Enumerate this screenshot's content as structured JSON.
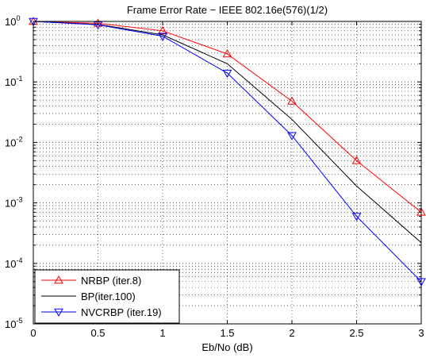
{
  "chart_data": {
    "type": "line",
    "title": "Frame Error Rate − IEEE 802.16e(576)(1/2)",
    "xlabel": "Eb/No (dB)",
    "ylabel": "",
    "xlim": [
      0,
      3
    ],
    "ylim": [
      1e-05,
      1
    ],
    "yscale": "log",
    "grid": true,
    "legend_position": "bottom-left",
    "x_ticks": [
      0,
      0.5,
      1,
      1.5,
      2,
      2.5,
      3
    ],
    "x_tick_labels": [
      "0",
      "0.5",
      "1",
      "1.5",
      "2",
      "2.5",
      "3"
    ],
    "y_ticks": [
      1,
      0.1,
      0.01,
      0.001,
      0.0001,
      1e-05
    ],
    "y_tick_labels": [
      {
        "base": "10",
        "exp": "0"
      },
      {
        "base": "10",
        "exp": "-1"
      },
      {
        "base": "10",
        "exp": "-2"
      },
      {
        "base": "10",
        "exp": "-3"
      },
      {
        "base": "10",
        "exp": "-4"
      },
      {
        "base": "10",
        "exp": "-5"
      }
    ],
    "x": [
      0,
      0.5,
      1,
      1.5,
      2,
      2.5,
      3
    ],
    "series": [
      {
        "name": "NRBP (iter.8)",
        "color": "#ff0000",
        "marker": "triangle-up",
        "values": [
          1.0,
          0.93,
          0.7,
          0.29,
          0.048,
          0.005,
          0.0007
        ]
      },
      {
        "name": "BP(iter.100)",
        "color": "#000000",
        "marker": "none",
        "values": [
          1.0,
          0.89,
          0.6,
          0.2,
          0.024,
          0.0019,
          0.00022
        ]
      },
      {
        "name": "NVCRBP (iter.19)",
        "color": "#0000ff",
        "marker": "triangle-down",
        "values": [
          1.0,
          0.88,
          0.57,
          0.14,
          0.013,
          0.0006,
          5e-05
        ]
      }
    ]
  }
}
